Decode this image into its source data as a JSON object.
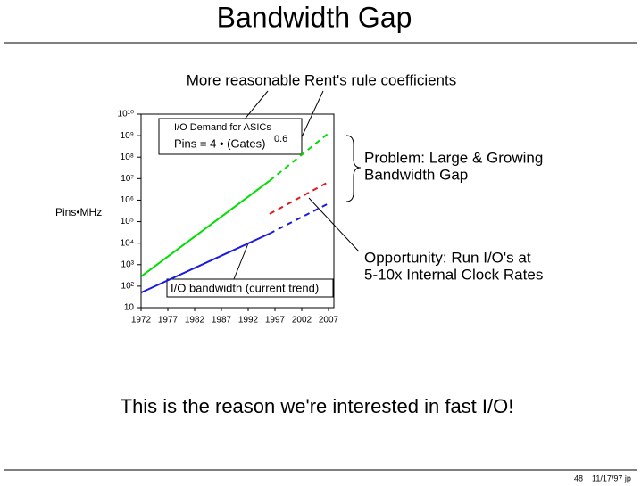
{
  "slide": {
    "title": "Bandwidth Gap",
    "message": "This is the reason we're interested in fast I/O!",
    "page": "48",
    "footer": "11/17/97 jp"
  },
  "chart_data": {
    "type": "line",
    "ylabel": "Pins•MHz",
    "log_y": true,
    "x": [
      1972,
      1996,
      2007
    ],
    "series": [
      {
        "color": "#00e000",
        "dashed": false,
        "values": [
          280,
          8000000,
          null
        ]
      },
      {
        "color": "#00e000",
        "dashed": true,
        "values": [
          null,
          8000000,
          1300000000
        ]
      },
      {
        "color": "#1a1ae0",
        "dashed": false,
        "values": [
          50,
          28000,
          null
        ]
      },
      {
        "color": "#1a1ae0",
        "dashed": true,
        "values": [
          null,
          28000,
          700000
        ]
      },
      {
        "color": "#e01a1a",
        "dashed": true,
        "values": [
          null,
          230000,
          7000000
        ]
      }
    ],
    "xlim": [
      1972,
      2008
    ],
    "xticks": [
      1972,
      1977,
      1982,
      1987,
      1992,
      1997,
      2002,
      2007
    ],
    "ylim": [
      10,
      10000000000
    ],
    "yticks": [
      10,
      {
        "value": 100,
        "label": "10²"
      },
      {
        "value": 1000,
        "label": "10³"
      },
      {
        "value": 10000,
        "label": "10⁴"
      },
      {
        "value": 100000,
        "label": "10⁵"
      },
      {
        "value": 1000000,
        "label": "10⁶"
      },
      {
        "value": 10000000,
        "label": "10⁷"
      },
      {
        "value": 100000000,
        "label": "10⁸"
      },
      {
        "value": 1000000000,
        "label": "10⁹"
      },
      {
        "value": 10000000000,
        "label": "10¹⁰"
      }
    ],
    "annotations": {
      "rent": "More reasonable Rent's rule coefficients",
      "demand_title": "I/O Demand for ASICs",
      "demand_formula": "Pins = 4 • (Gates)",
      "demand_exponent": "0.6",
      "trend": "I/O bandwidth (current trend)",
      "problem": [
        "Problem:  Large & Growing",
        "Bandwidth Gap"
      ],
      "opportunity": [
        "Opportunity:  Run I/O's at",
        "5-10x Internal Clock Rates"
      ]
    }
  }
}
